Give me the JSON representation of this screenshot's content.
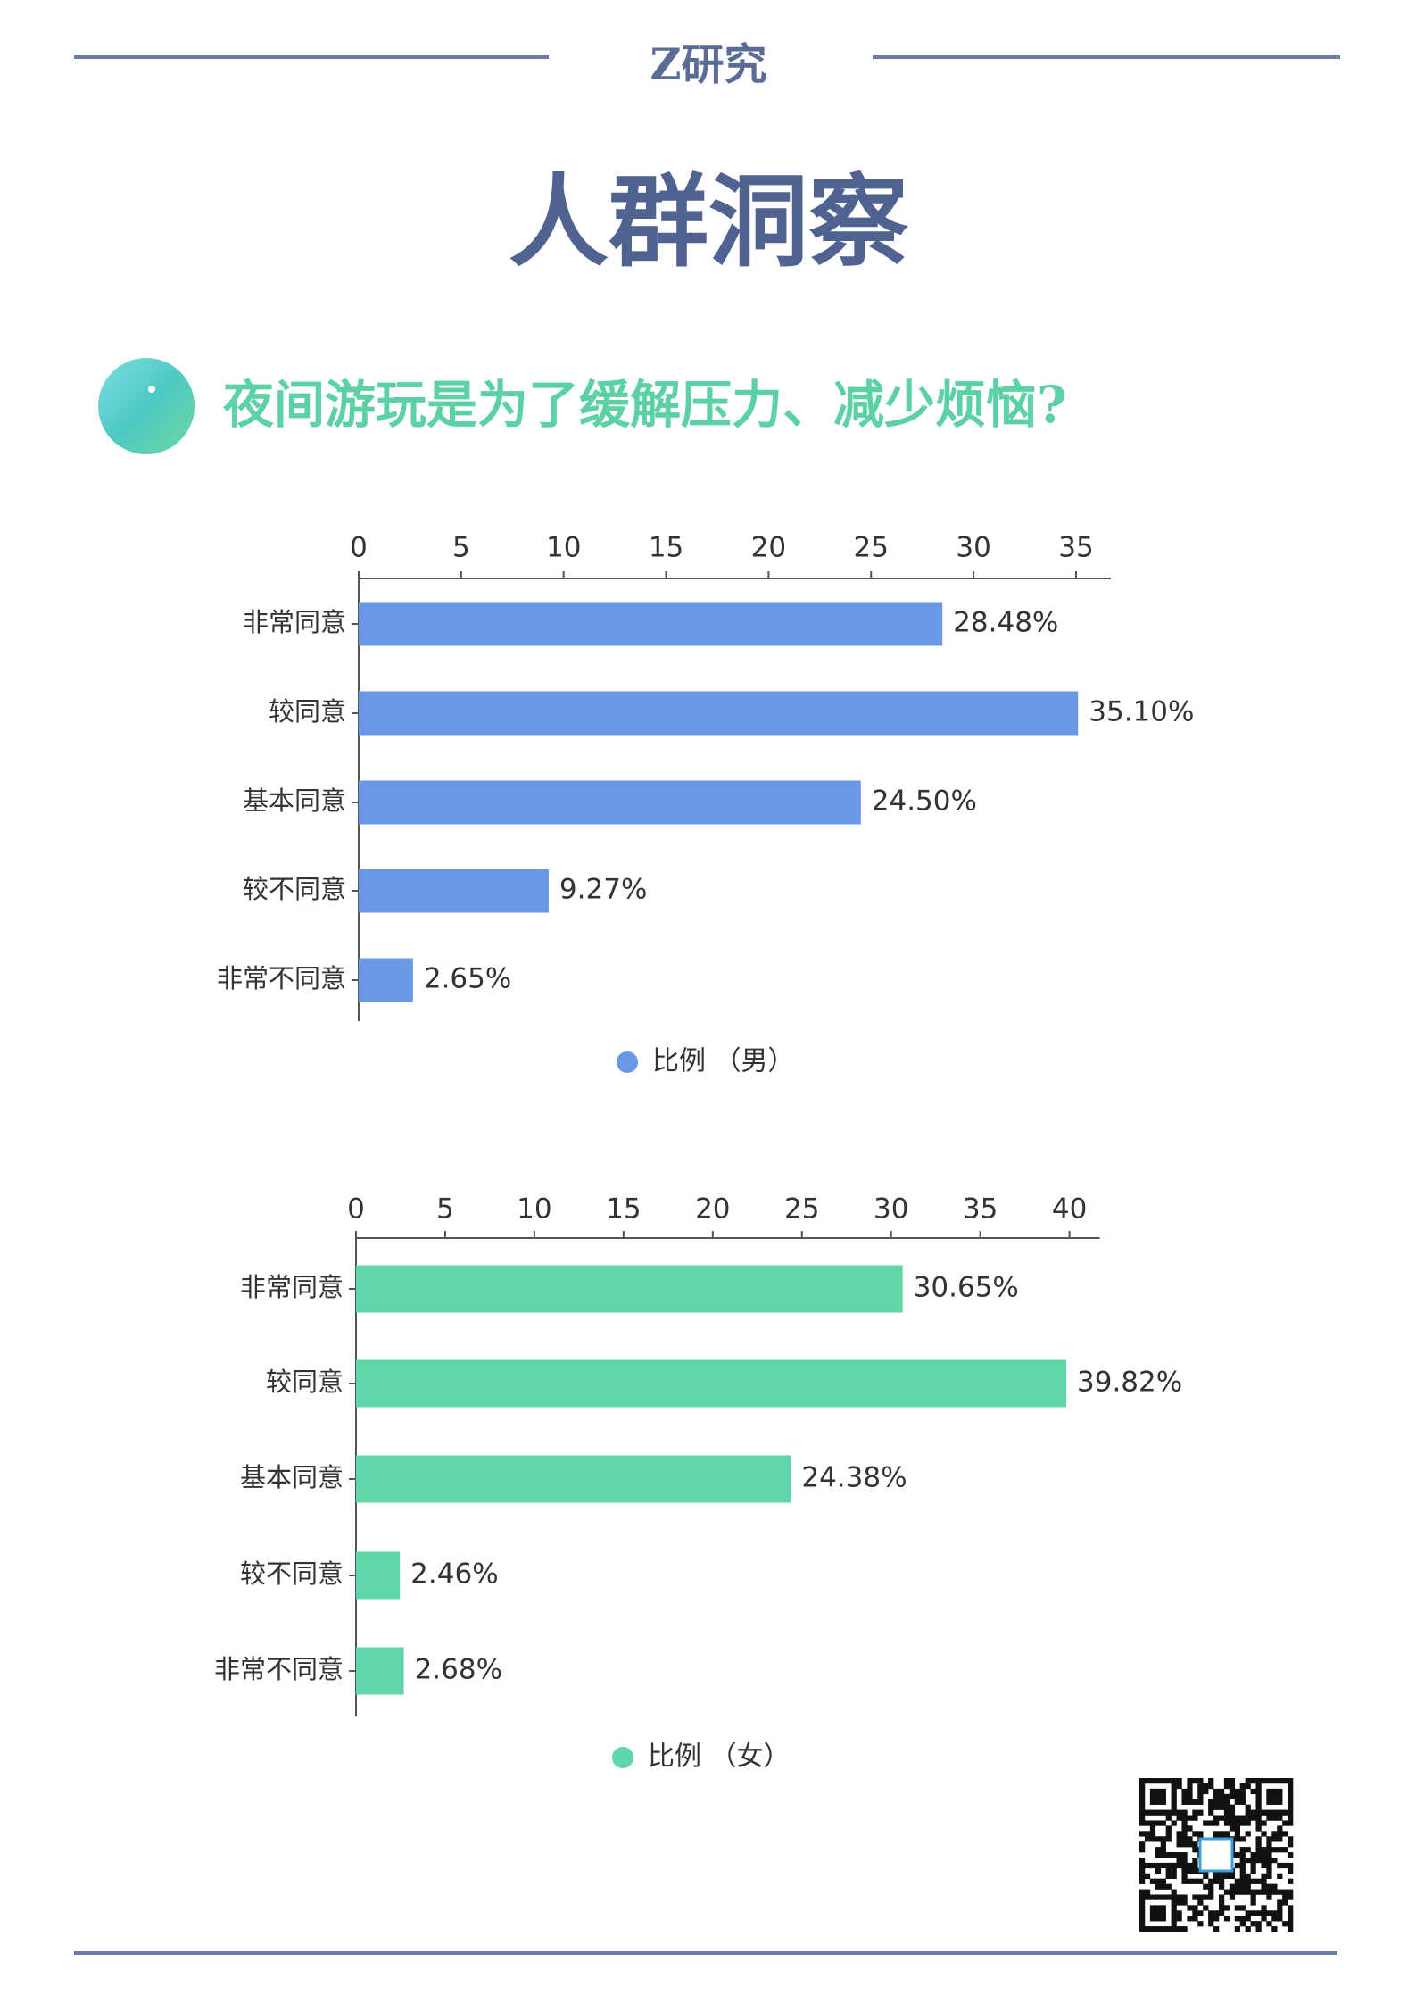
{
  "header": {
    "brand": "Z研究",
    "title": "人群洞察",
    "question": "夜间游玩是为了缓解压力、减少烦恼?"
  },
  "chart_data": [
    {
      "type": "bar",
      "orientation": "horizontal",
      "categories": [
        "非常同意",
        "较同意",
        "基本同意",
        "较不同意",
        "非常不同意"
      ],
      "series": [
        {
          "name": "比例 （男）",
          "color": "#6a97e6",
          "values": [
            28.48,
            35.1,
            24.5,
            9.27,
            2.65
          ],
          "value_labels": [
            "28.48%",
            "35.10%",
            "24.50%",
            "9.27%",
            "2.65%"
          ]
        }
      ],
      "xlim": [
        0,
        36.7
      ],
      "xticks": [
        0,
        5,
        10,
        15,
        20,
        25,
        30,
        35
      ],
      "legend": "bottom"
    },
    {
      "type": "bar",
      "orientation": "horizontal",
      "categories": [
        "非常同意",
        "较同意",
        "基本同意",
        "较不同意",
        "非常不同意"
      ],
      "series": [
        {
          "name": "比例 （女）",
          "color": "#5ed6a8",
          "values": [
            30.65,
            39.82,
            24.38,
            2.46,
            2.68
          ],
          "value_labels": [
            "30.65%",
            "39.82%",
            "24.38%",
            "2.46%",
            "2.68%"
          ]
        }
      ],
      "xlim": [
        0,
        41.7
      ],
      "xticks": [
        0,
        5,
        10,
        15,
        20,
        25,
        30,
        35,
        40
      ],
      "legend": "bottom"
    }
  ]
}
